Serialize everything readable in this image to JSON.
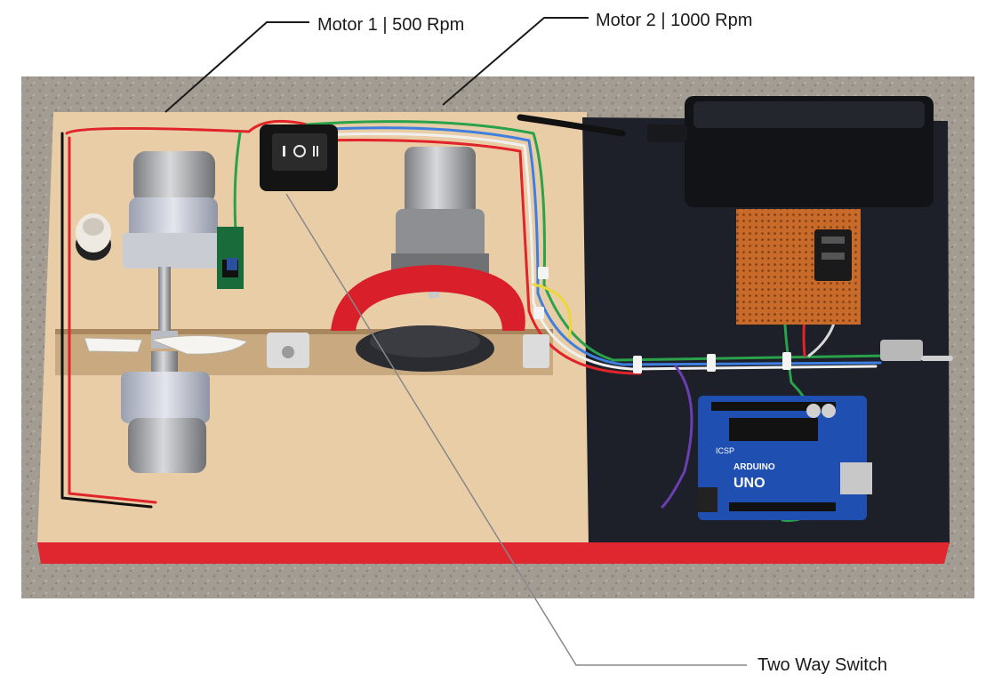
{
  "annotations": {
    "motor1": "Motor 1 | 500 Rpm",
    "motor2": "Motor 2 | 1000 Rpm",
    "switch": "Two Way Switch"
  },
  "board": {
    "icsp_text": "ICSP",
    "brand_text": "ARDUINO",
    "model_text": "UNO"
  },
  "colors": {
    "ground": "#a39c92",
    "wood": "#e9cda7",
    "mat": "#1d2029",
    "red_edge": "#e0262e",
    "arduino": "#1f4fb0",
    "wire_red": "#e0242a",
    "wire_green": "#2aa14b",
    "adapter": "#111317",
    "perfboard": "#c86a2a"
  }
}
